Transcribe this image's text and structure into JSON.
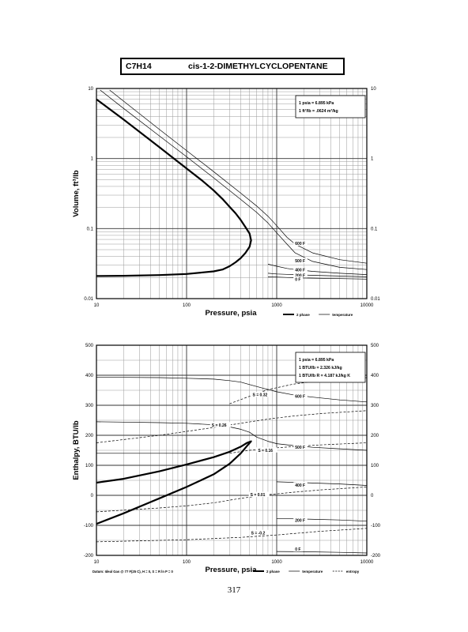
{
  "header": {
    "formula": "C7H14",
    "compound": "cis-1-2-DIMETHYLCYCLOPENTANE"
  },
  "page_number": "317",
  "chart_data": [
    {
      "type": "line",
      "xscale": "log",
      "yscale": "log",
      "xlim": [
        10,
        10000
      ],
      "ylim": [
        0.01,
        10
      ],
      "xlabel": "Pressure,  psia",
      "ylabel": "Volume, ft^3/lb",
      "x_ticks": [
        10,
        100,
        1000,
        10000
      ],
      "x_tick_labels": [
        "10",
        "100",
        "1000",
        "10000"
      ],
      "y_ticks": [
        0.01,
        0.1,
        1,
        10
      ],
      "y_tick_labels": [
        "0.01",
        "0.1",
        "1",
        "10"
      ],
      "grid": true,
      "legend_box": [
        "1 psia  =  6.895 kPa",
        "1 ft^3/lb  =  .0624 m^3/kg"
      ],
      "legend": [
        {
          "label": "2 phase",
          "style": "thick"
        },
        {
          "label": "temperature",
          "style": "thin"
        }
      ],
      "annotations": [
        {
          "text": "600 F",
          "x": 1600,
          "y": 0.06
        },
        {
          "text": "500 F",
          "x": 1600,
          "y": 0.034
        },
        {
          "text": "400 F",
          "x": 1600,
          "y": 0.025
        },
        {
          "text": "200 F",
          "x": 1600,
          "y": 0.021
        },
        {
          "text": "0 F",
          "x": 1600,
          "y": 0.0185
        }
      ],
      "series": [
        {
          "style": "thick",
          "x": [
            10,
            20,
            50,
            100,
            150,
            200,
            250,
            300,
            350,
            400,
            450,
            500,
            520,
            500,
            450,
            400,
            350,
            300,
            250,
            200,
            100,
            50,
            20,
            10
          ],
          "y": [
            7.0,
            3.6,
            1.45,
            0.72,
            0.48,
            0.35,
            0.265,
            0.205,
            0.165,
            0.132,
            0.105,
            0.085,
            0.068,
            0.055,
            0.045,
            0.038,
            0.033,
            0.029,
            0.026,
            0.0245,
            0.0225,
            0.0217,
            0.0212,
            0.021
          ]
        },
        {
          "style": "thin",
          "x": [
            11,
            20,
            50,
            100,
            200,
            400,
            600,
            800,
            1000,
            1300,
            1600,
            2500,
            5000,
            10000
          ],
          "y": [
            9.5,
            5.2,
            2.1,
            1.06,
            0.53,
            0.26,
            0.17,
            0.12,
            0.087,
            0.06,
            0.045,
            0.034,
            0.028,
            0.026
          ]
        },
        {
          "style": "thin",
          "x": [
            14,
            20,
            50,
            100,
            200,
            400,
            600,
            800,
            1000,
            1300,
            1600,
            2500,
            5000,
            10000
          ],
          "y": [
            9.5,
            6.6,
            2.6,
            1.3,
            0.65,
            0.32,
            0.21,
            0.15,
            0.11,
            0.075,
            0.06,
            0.045,
            0.036,
            0.032
          ]
        },
        {
          "style": "thin",
          "x": [
            800,
            1000,
            1300,
            1600,
            2500,
            5000,
            10000
          ],
          "y": [
            0.031,
            0.029,
            0.027,
            0.026,
            0.0245,
            0.023,
            0.022
          ]
        },
        {
          "style": "thin",
          "x": [
            800,
            1000,
            1300,
            1600,
            2500,
            5000,
            10000
          ],
          "y": [
            0.023,
            0.0225,
            0.0222,
            0.022,
            0.0215,
            0.021,
            0.0205
          ]
        },
        {
          "style": "thin",
          "x": [
            800,
            1000,
            1600,
            2500,
            5000,
            10000
          ],
          "y": [
            0.0205,
            0.0203,
            0.0198,
            0.0196,
            0.0193,
            0.019
          ]
        }
      ]
    },
    {
      "type": "line",
      "xscale": "log",
      "yscale": "linear",
      "xlim": [
        10,
        10000
      ],
      "ylim": [
        -200,
        500
      ],
      "xlabel": "Pressure,  psia",
      "ylabel": "Enthalpy, BTU/lb",
      "x_ticks": [
        10,
        100,
        1000,
        10000
      ],
      "x_tick_labels": [
        "10",
        "100",
        "1000",
        "10000"
      ],
      "y_ticks": [
        -200,
        -100,
        0,
        100,
        200,
        300,
        400,
        500
      ],
      "y_tick_labels": [
        "-200",
        "-100",
        "0",
        "100",
        "200",
        "300",
        "400",
        "500"
      ],
      "grid": true,
      "legend_box": [
        "1 psia  =  6.895 kPa",
        "1 BTU/lb  =  2.326 kJ/kg",
        "1 BTU/lb R  =  4.187 kJ/kg K"
      ],
      "legend": [
        {
          "label": "2 phase",
          "style": "thick"
        },
        {
          "label": "temperature",
          "style": "thin"
        },
        {
          "label": "entropy",
          "style": "dashed"
        }
      ],
      "footnote": "Datum: Ideal Gas @ 77 F(25 C),  H = 0,  S = R ln P = 0",
      "annotations": [
        {
          "text": "S = 0.32",
          "x": 540,
          "y": 333
        },
        {
          "text": "600 F",
          "x": 1600,
          "y": 328
        },
        {
          "text": "S = 0.26",
          "x": 190,
          "y": 232
        },
        {
          "text": "S = 0.16",
          "x": 620,
          "y": 148
        },
        {
          "text": "500 F",
          "x": 1600,
          "y": 158
        },
        {
          "text": "400 F",
          "x": 1600,
          "y": 32
        },
        {
          "text": "S = 0.01",
          "x": 510,
          "y": 0
        },
        {
          "text": "200 F",
          "x": 1600,
          "y": -85
        },
        {
          "text": "S = -0.2",
          "x": 520,
          "y": -127
        },
        {
          "text": "0 F",
          "x": 1600,
          "y": -182
        }
      ],
      "series": [
        {
          "style": "thick",
          "x": [
            10,
            20,
            50,
            100,
            200,
            300,
            400,
            470,
            520,
            470,
            400,
            300,
            200,
            100,
            50,
            20,
            10
          ],
          "y": [
            42,
            55,
            80,
            103,
            127,
            145,
            162,
            175,
            180,
            165,
            140,
            105,
            70,
            28,
            -10,
            -60,
            -95
          ]
        },
        {
          "style": "thin",
          "x": [
            10,
            20,
            50,
            100,
            200,
            300,
            400,
            500,
            700,
            1000,
            1500,
            2500,
            5000,
            10000
          ],
          "y": [
            393,
            393,
            392,
            390,
            387,
            382,
            377,
            369,
            357,
            345,
            335,
            327,
            318,
            311
          ]
        },
        {
          "style": "thin",
          "x": [
            10,
            20,
            50,
            100,
            200,
            300,
            400,
            500,
            600,
            800,
            1000,
            1500,
            2500,
            5000,
            10000
          ],
          "y": [
            245,
            244,
            242,
            240,
            235,
            228,
            220,
            210,
            194,
            180,
            172,
            166,
            160,
            155,
            150
          ]
        },
        {
          "style": "thin",
          "x": [
            10,
            200
          ],
          "y": [
            140,
            140
          ]
        },
        {
          "style": "thin",
          "x": [
            1000,
            2000,
            5000,
            10000
          ],
          "y": [
            45,
            42,
            38,
            33
          ]
        },
        {
          "style": "thin",
          "x": [
            1000,
            2000,
            5000,
            10000
          ],
          "y": [
            -77,
            -79,
            -82,
            -86
          ]
        },
        {
          "style": "thin",
          "x": [
            1000,
            2000,
            5000,
            10000
          ],
          "y": [
            -187,
            -188,
            -190,
            -192
          ]
        },
        {
          "style": "dashed",
          "x": [
            300,
            500,
            800,
            1500,
            3000,
            10000
          ],
          "y": [
            305,
            330,
            352,
            370,
            382,
            392
          ]
        },
        {
          "style": "dashed",
          "x": [
            10,
            50,
            100,
            200,
            400,
            800,
            1500,
            3000,
            10000
          ],
          "y": [
            175,
            200,
            213,
            226,
            240,
            254,
            264,
            272,
            282
          ]
        },
        {
          "style": "dashed",
          "x": [
            300,
            500,
            800,
            1500,
            3000,
            10000
          ],
          "y": [
            140,
            150,
            156,
            162,
            168,
            175
          ]
        },
        {
          "style": "dashed",
          "x": [
            10,
            50,
            100,
            200,
            400,
            800,
            1500,
            3000,
            10000
          ],
          "y": [
            -55,
            -42,
            -35,
            -25,
            -10,
            2,
            10,
            18,
            28
          ]
        },
        {
          "style": "dashed",
          "x": [
            10,
            100,
            400,
            1000,
            3000,
            10000
          ],
          "y": [
            -155,
            -148,
            -140,
            -132,
            -120,
            -110
          ]
        }
      ]
    }
  ]
}
